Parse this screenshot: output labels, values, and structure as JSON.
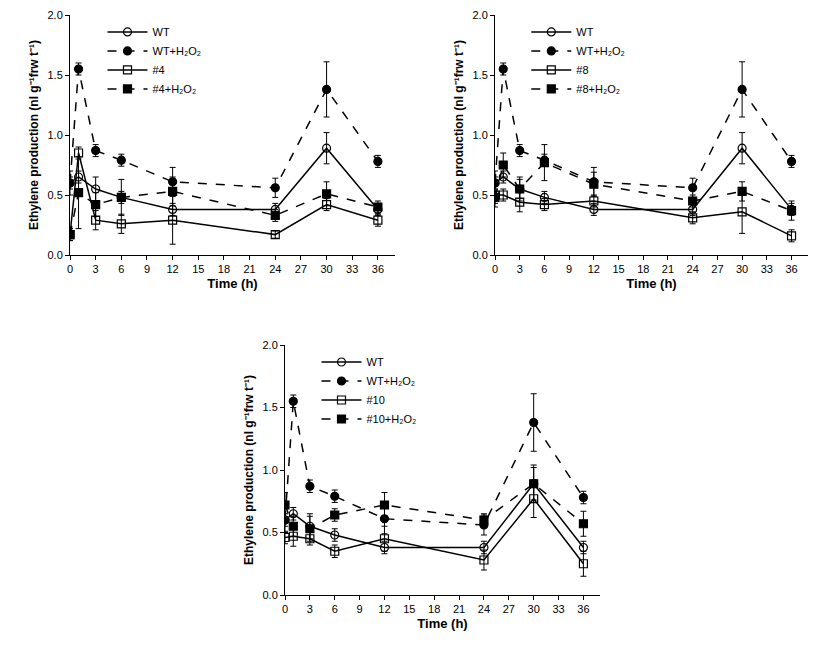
{
  "chart_data": [
    {
      "type": "line",
      "x": [
        0,
        1,
        3,
        6,
        12,
        24,
        30,
        36
      ],
      "xlabel": "Time (h)",
      "ylabel": "Ethylene production (nl g⁻¹frw t⁻¹)",
      "xlim": [
        0,
        38
      ],
      "ylim": [
        0,
        2
      ],
      "xticks": [
        0,
        3,
        6,
        9,
        12,
        15,
        18,
        21,
        24,
        27,
        30,
        33,
        36
      ],
      "yticks": [
        {
          "value": 0,
          "label": "0.0"
        },
        {
          "value": 0.5,
          "label": "0.5"
        },
        {
          "value": 1,
          "label": "1.0"
        },
        {
          "value": 1.5,
          "label": "1.5"
        },
        {
          "value": 2,
          "label": "2.0"
        }
      ],
      "legend": "upper left",
      "series": [
        {
          "name": "WT",
          "color": "#000000",
          "marker": "circle-open",
          "line_style": "solid",
          "values": [
            0.6,
            0.65,
            0.55,
            0.48,
            0.38,
            0.38,
            0.89,
            0.38
          ],
          "errors": [
            0.05,
            0.05,
            0.1,
            0.05,
            0.05,
            0.05,
            0.13,
            0.05
          ]
        },
        {
          "name": "WT+H₂O₂",
          "color": "#000000",
          "marker": "circle",
          "line_style": "dash",
          "values": [
            0.6,
            1.55,
            0.87,
            0.79,
            0.61,
            0.56,
            1.38,
            0.78
          ],
          "errors": [
            0.1,
            0.05,
            0.05,
            0.05,
            0.12,
            0.08,
            0.23,
            0.05
          ]
        },
        {
          "name": "#4",
          "color": "#000000",
          "marker": "square-open",
          "line_style": "solid",
          "values": [
            0.17,
            0.85,
            0.29,
            0.26,
            0.29,
            0.17,
            0.42,
            0.29
          ],
          "errors": [
            0.05,
            0.05,
            0.08,
            0.08,
            0.2,
            0.03,
            0.05,
            0.05
          ]
        },
        {
          "name": "#4+H₂O₂",
          "color": "#000000",
          "marker": "square",
          "line_style": "dash",
          "values": [
            0.17,
            0.52,
            0.42,
            0.48,
            0.53,
            0.33,
            0.51,
            0.4
          ],
          "errors": [
            0.05,
            0.3,
            0.1,
            0.15,
            0.12,
            0.05,
            0.1,
            0.05
          ]
        }
      ]
    },
    {
      "type": "line",
      "x": [
        0,
        1,
        3,
        6,
        12,
        24,
        30,
        36
      ],
      "xlabel": "Time (h)",
      "ylabel": "Ethylene production (nl g⁻¹frw t⁻¹)",
      "xlim": [
        0,
        38
      ],
      "ylim": [
        0,
        2
      ],
      "xticks": [
        0,
        3,
        6,
        9,
        12,
        15,
        18,
        21,
        24,
        27,
        30,
        33,
        36
      ],
      "yticks": [
        {
          "value": 0,
          "label": "0.0"
        },
        {
          "value": 0.5,
          "label": "0.5"
        },
        {
          "value": 1,
          "label": "1.0"
        },
        {
          "value": 1.5,
          "label": "1.5"
        },
        {
          "value": 2,
          "label": "2.0"
        }
      ],
      "legend": "upper left",
      "series": [
        {
          "name": "WT",
          "color": "#000000",
          "marker": "circle-open",
          "line_style": "solid",
          "values": [
            0.6,
            0.65,
            0.55,
            0.48,
            0.38,
            0.38,
            0.89,
            0.38
          ],
          "errors": [
            0.05,
            0.05,
            0.1,
            0.05,
            0.05,
            0.05,
            0.13,
            0.05
          ]
        },
        {
          "name": "WT+H₂O₂",
          "color": "#000000",
          "marker": "circle",
          "line_style": "dash",
          "values": [
            0.6,
            1.55,
            0.87,
            0.79,
            0.61,
            0.56,
            1.38,
            0.78
          ],
          "errors": [
            0.1,
            0.05,
            0.05,
            0.05,
            0.12,
            0.08,
            0.23,
            0.05
          ]
        },
        {
          "name": "#8",
          "color": "#000000",
          "marker": "square-open",
          "line_style": "solid",
          "values": [
            0.5,
            0.5,
            0.44,
            0.42,
            0.45,
            0.31,
            0.36,
            0.16
          ],
          "errors": [
            0.1,
            0.05,
            0.08,
            0.05,
            0.05,
            0.05,
            0.18,
            0.05
          ]
        },
        {
          "name": "#8+H₂O₂",
          "color": "#000000",
          "marker": "square",
          "line_style": "dash",
          "values": [
            0.48,
            0.75,
            0.55,
            0.77,
            0.59,
            0.45,
            0.53,
            0.37
          ],
          "errors": [
            0.05,
            0.1,
            0.08,
            0.15,
            0.1,
            0.05,
            0.08,
            0.08
          ]
        }
      ]
    },
    {
      "type": "line",
      "x": [
        0,
        1,
        3,
        6,
        12,
        24,
        30,
        36
      ],
      "xlabel": "Time (h)",
      "ylabel": "Ethylene production (nl g⁻¹frw t⁻¹)",
      "xlim": [
        0,
        38
      ],
      "ylim": [
        0,
        2
      ],
      "xticks": [
        0,
        3,
        6,
        9,
        12,
        15,
        18,
        21,
        24,
        27,
        30,
        33,
        36
      ],
      "yticks": [
        {
          "value": 0,
          "label": "0.0"
        },
        {
          "value": 0.5,
          "label": "0.5"
        },
        {
          "value": 1,
          "label": "1.0"
        },
        {
          "value": 1.5,
          "label": "1.5"
        },
        {
          "value": 2,
          "label": "2.0"
        }
      ],
      "legend": "upper left",
      "series": [
        {
          "name": "WT",
          "color": "#000000",
          "marker": "circle-open",
          "line_style": "solid",
          "values": [
            0.6,
            0.65,
            0.55,
            0.48,
            0.38,
            0.38,
            0.89,
            0.38
          ],
          "errors": [
            0.05,
            0.05,
            0.1,
            0.05,
            0.05,
            0.05,
            0.13,
            0.05
          ]
        },
        {
          "name": "WT+H₂O₂",
          "color": "#000000",
          "marker": "circle",
          "line_style": "dash",
          "values": [
            0.6,
            1.55,
            0.87,
            0.79,
            0.61,
            0.56,
            1.38,
            0.78
          ],
          "errors": [
            0.1,
            0.05,
            0.05,
            0.05,
            0.12,
            0.08,
            0.23,
            0.05
          ]
        },
        {
          "name": "#10",
          "color": "#000000",
          "marker": "square-open",
          "line_style": "solid",
          "values": [
            0.46,
            0.47,
            0.45,
            0.35,
            0.45,
            0.28,
            0.77,
            0.25
          ],
          "errors": [
            0.05,
            0.08,
            0.05,
            0.05,
            0.1,
            0.08,
            0.15,
            0.1
          ]
        },
        {
          "name": "#10+H₂O₂",
          "color": "#000000",
          "marker": "square",
          "line_style": "dash",
          "values": [
            0.72,
            0.55,
            0.53,
            0.64,
            0.72,
            0.6,
            0.89,
            0.57
          ],
          "errors": [
            0.1,
            0.08,
            0.1,
            0.05,
            0.1,
            0.05,
            0.15,
            0.1
          ]
        }
      ]
    }
  ]
}
